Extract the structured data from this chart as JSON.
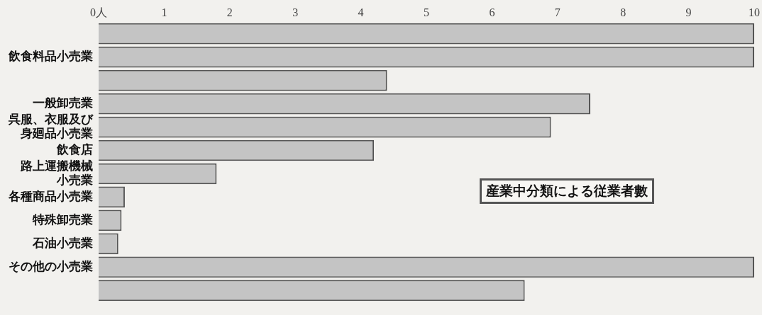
{
  "chart_data": {
    "type": "bar",
    "orientation": "horizontal",
    "title": "産業中分類による従業者數",
    "categories": [
      null,
      "飲食料品小売業",
      null,
      "一般卸売業",
      "呉服、衣服及び身廻品小売業",
      "飲食店",
      "路上運搬機械小売業",
      "各種商品小売業",
      "特殊卸売業",
      "石油小売業",
      "その他の小売業",
      null
    ],
    "values": [
      10,
      10,
      4.4,
      7.5,
      6.9,
      4.2,
      1.8,
      0.4,
      0.35,
      0.3,
      10,
      6.5
    ],
    "color": "#c4c4c4",
    "xlim": [
      0,
      10
    ],
    "xticks": [
      {
        "value": 0,
        "label": "0人"
      },
      1,
      2,
      3,
      4,
      5,
      6,
      7,
      8,
      9,
      10
    ],
    "legend": false
  }
}
